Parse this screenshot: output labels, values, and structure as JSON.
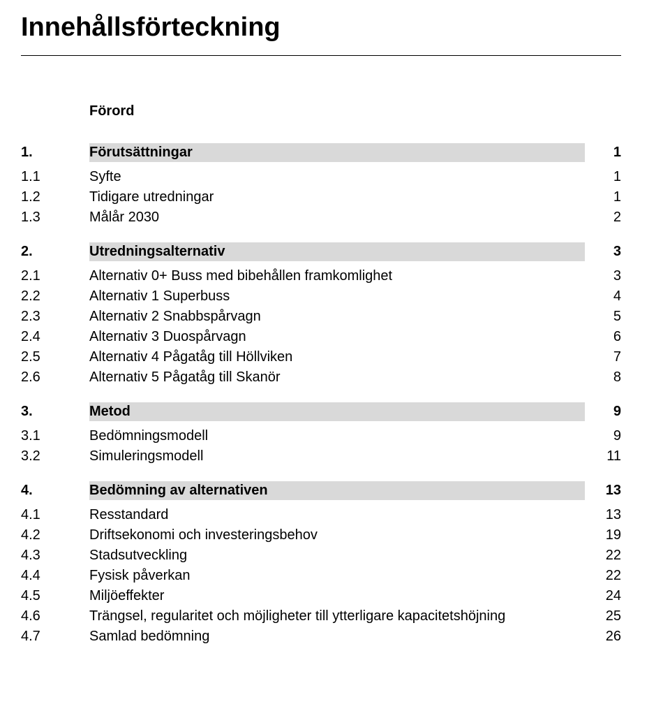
{
  "title": "Innehållsförteckning",
  "forord": "Förord",
  "colors": {
    "background": "#ffffff",
    "text": "#000000",
    "chapter_fill": "#d9d9d9",
    "rule": "#000000"
  },
  "typography": {
    "title_fontsize": 38,
    "chapter_fontsize": 20,
    "sub_fontsize": 20,
    "font_family": "Arial",
    "title_weight": "bold",
    "chapter_weight": "bold",
    "sub_weight": "normal"
  },
  "chapters": [
    {
      "num": "1.",
      "label": "Förutsättningar",
      "page": "1",
      "subs": [
        {
          "num": "1.1",
          "label": "Syfte",
          "page": "1"
        },
        {
          "num": "1.2",
          "label": "Tidigare utredningar",
          "page": "1"
        },
        {
          "num": "1.3",
          "label": "Målår 2030",
          "page": "2"
        }
      ]
    },
    {
      "num": "2.",
      "label": "Utredningsalternativ",
      "page": "3",
      "subs": [
        {
          "num": "2.1",
          "label": "Alternativ 0+ Buss med bibehållen framkomlighet",
          "page": "3"
        },
        {
          "num": "2.2",
          "label": "Alternativ 1 Superbuss",
          "page": "4"
        },
        {
          "num": "2.3",
          "label": "Alternativ 2 Snabbspårvagn",
          "page": "5"
        },
        {
          "num": "2.4",
          "label": "Alternativ 3 Duospårvagn",
          "page": "6"
        },
        {
          "num": "2.5",
          "label": "Alternativ 4 Pågatåg till Höllviken",
          "page": "7"
        },
        {
          "num": "2.6",
          "label": "Alternativ 5 Pågatåg till Skanör",
          "page": "8"
        }
      ]
    },
    {
      "num": "3.",
      "label": "Metod",
      "page": "9",
      "subs": [
        {
          "num": "3.1",
          "label": "Bedömningsmodell",
          "page": "9"
        },
        {
          "num": "3.2",
          "label": "Simuleringsmodell",
          "page": "11"
        }
      ]
    },
    {
      "num": "4.",
      "label": "Bedömning av alternativen",
      "page": "13",
      "subs": [
        {
          "num": "4.1",
          "label": "Resstandard",
          "page": "13"
        },
        {
          "num": "4.2",
          "label": "Driftsekonomi och investeringsbehov",
          "page": "19"
        },
        {
          "num": "4.3",
          "label": "Stadsutveckling",
          "page": "22"
        },
        {
          "num": "4.4",
          "label": "Fysisk påverkan",
          "page": "22"
        },
        {
          "num": "4.5",
          "label": "Miljöeffekter",
          "page": "24"
        },
        {
          "num": "4.6",
          "label": "Trängsel, regularitet och möjligheter till ytterligare kapacitetshöjning",
          "page": "25"
        },
        {
          "num": "4.7",
          "label": "Samlad bedömning",
          "page": "26"
        }
      ]
    }
  ]
}
